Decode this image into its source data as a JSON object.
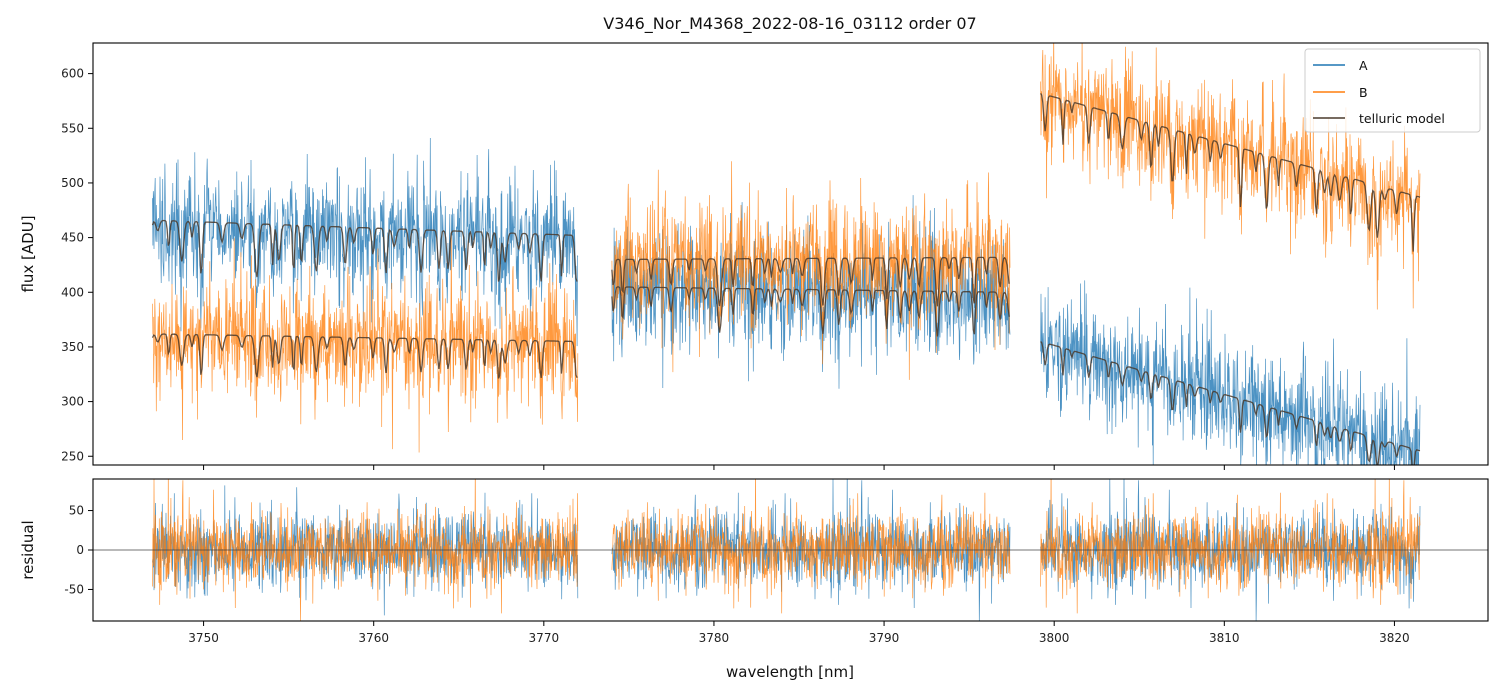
{
  "chart_data": {
    "type": "line",
    "title": "V346_Nor_M4368_2022-08-16_03112  order 07",
    "xlabel": "wavelength [nm]",
    "xlim": [
      3743.5,
      3825.5
    ],
    "xticks": [
      3750,
      3760,
      3770,
      3780,
      3790,
      3800,
      3810,
      3820
    ],
    "segments": [
      {
        "start": 3747.0,
        "end": 3772.0,
        "A_level": [
          466,
          452
        ],
        "B_level": [
          362,
          355
        ]
      },
      {
        "start": 3774.0,
        "end": 3797.4,
        "A_level": [
          405,
          400
        ],
        "B_level": [
          430,
          432
        ]
      },
      {
        "start": 3799.2,
        "end": 3821.5,
        "A_level": [
          355,
          255
        ],
        "B_level": [
          582,
          487
        ]
      }
    ],
    "panels": [
      {
        "name": "flux",
        "ylabel": "flux [ADU]",
        "ylim": [
          242,
          628
        ],
        "yticks": [
          250,
          300,
          350,
          400,
          450,
          500,
          550,
          600
        ],
        "series": [
          {
            "name": "A",
            "color": "#1f77b4",
            "noise": 45
          },
          {
            "name": "B",
            "color": "#ff7f0e",
            "noise": 45
          },
          {
            "name": "telluric model",
            "color": "#4a3a2c"
          }
        ],
        "legend": {
          "placement": "upper right",
          "entries": [
            "A",
            "B",
            "telluric model"
          ]
        }
      },
      {
        "name": "residual",
        "ylabel": "residual",
        "ylim": [
          -90,
          90
        ],
        "yticks": [
          -50,
          0,
          50
        ],
        "series": [
          {
            "name": "A",
            "color": "#1f77b4",
            "noise": 42
          },
          {
            "name": "B",
            "color": "#ff7f0e",
            "noise": 42
          }
        ],
        "zero_line": true
      }
    ]
  }
}
